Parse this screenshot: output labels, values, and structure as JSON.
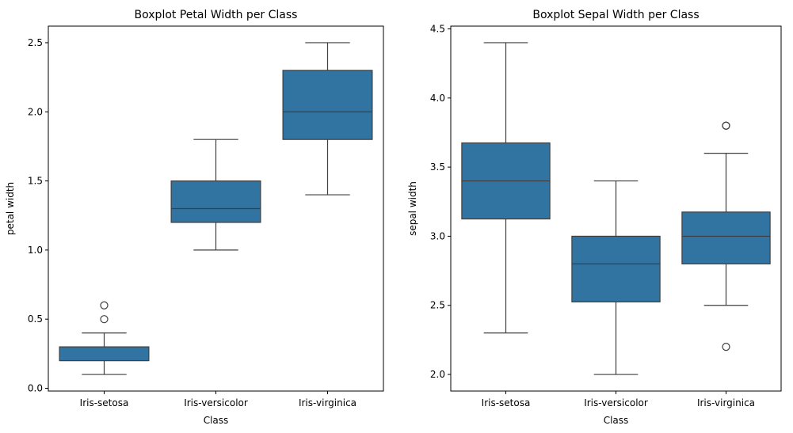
{
  "colors": {
    "box_fill": "#3274a1",
    "line": "#3f3f3f",
    "axis": "#000000"
  },
  "chart_data": [
    {
      "type": "box",
      "title": "Boxplot Petal Width per Class",
      "xlabel": "Class",
      "ylabel": "petal width",
      "ylim": [
        -0.02,
        2.62
      ],
      "yticks": [
        0.0,
        0.5,
        1.0,
        1.5,
        2.0,
        2.5
      ],
      "ytick_labels": [
        "0.0",
        "0.5",
        "1.0",
        "1.5",
        "2.0",
        "2.5"
      ],
      "categories": [
        "Iris-setosa",
        "Iris-versicolor",
        "Iris-virginica"
      ],
      "boxes": [
        {
          "whisker_low": 0.1,
          "q1": 0.2,
          "median": 0.2,
          "q3": 0.3,
          "whisker_high": 0.4,
          "outliers": [
            0.5,
            0.6
          ]
        },
        {
          "whisker_low": 1.0,
          "q1": 1.2,
          "median": 1.3,
          "q3": 1.5,
          "whisker_high": 1.8,
          "outliers": []
        },
        {
          "whisker_low": 1.4,
          "q1": 1.8,
          "median": 2.0,
          "q3": 2.3,
          "whisker_high": 2.5,
          "outliers": []
        }
      ],
      "grid": false
    },
    {
      "type": "box",
      "title": "Boxplot Sepal Width per Class",
      "xlabel": "Class",
      "ylabel": "sepal width",
      "ylim": [
        1.88,
        4.52
      ],
      "yticks": [
        2.0,
        2.5,
        3.0,
        3.5,
        4.0,
        4.5
      ],
      "ytick_labels": [
        "2.0",
        "2.5",
        "3.0",
        "3.5",
        "4.0",
        "4.5"
      ],
      "categories": [
        "Iris-setosa",
        "Iris-versicolor",
        "Iris-virginica"
      ],
      "boxes": [
        {
          "whisker_low": 2.3,
          "q1": 3.125,
          "median": 3.4,
          "q3": 3.675,
          "whisker_high": 4.4,
          "outliers": []
        },
        {
          "whisker_low": 2.0,
          "q1": 2.525,
          "median": 2.8,
          "q3": 3.0,
          "whisker_high": 3.4,
          "outliers": []
        },
        {
          "whisker_low": 2.5,
          "q1": 2.8,
          "median": 3.0,
          "q3": 3.175,
          "whisker_high": 3.6,
          "outliers": [
            3.8,
            3.8,
            2.2
          ]
        }
      ],
      "grid": false
    }
  ]
}
